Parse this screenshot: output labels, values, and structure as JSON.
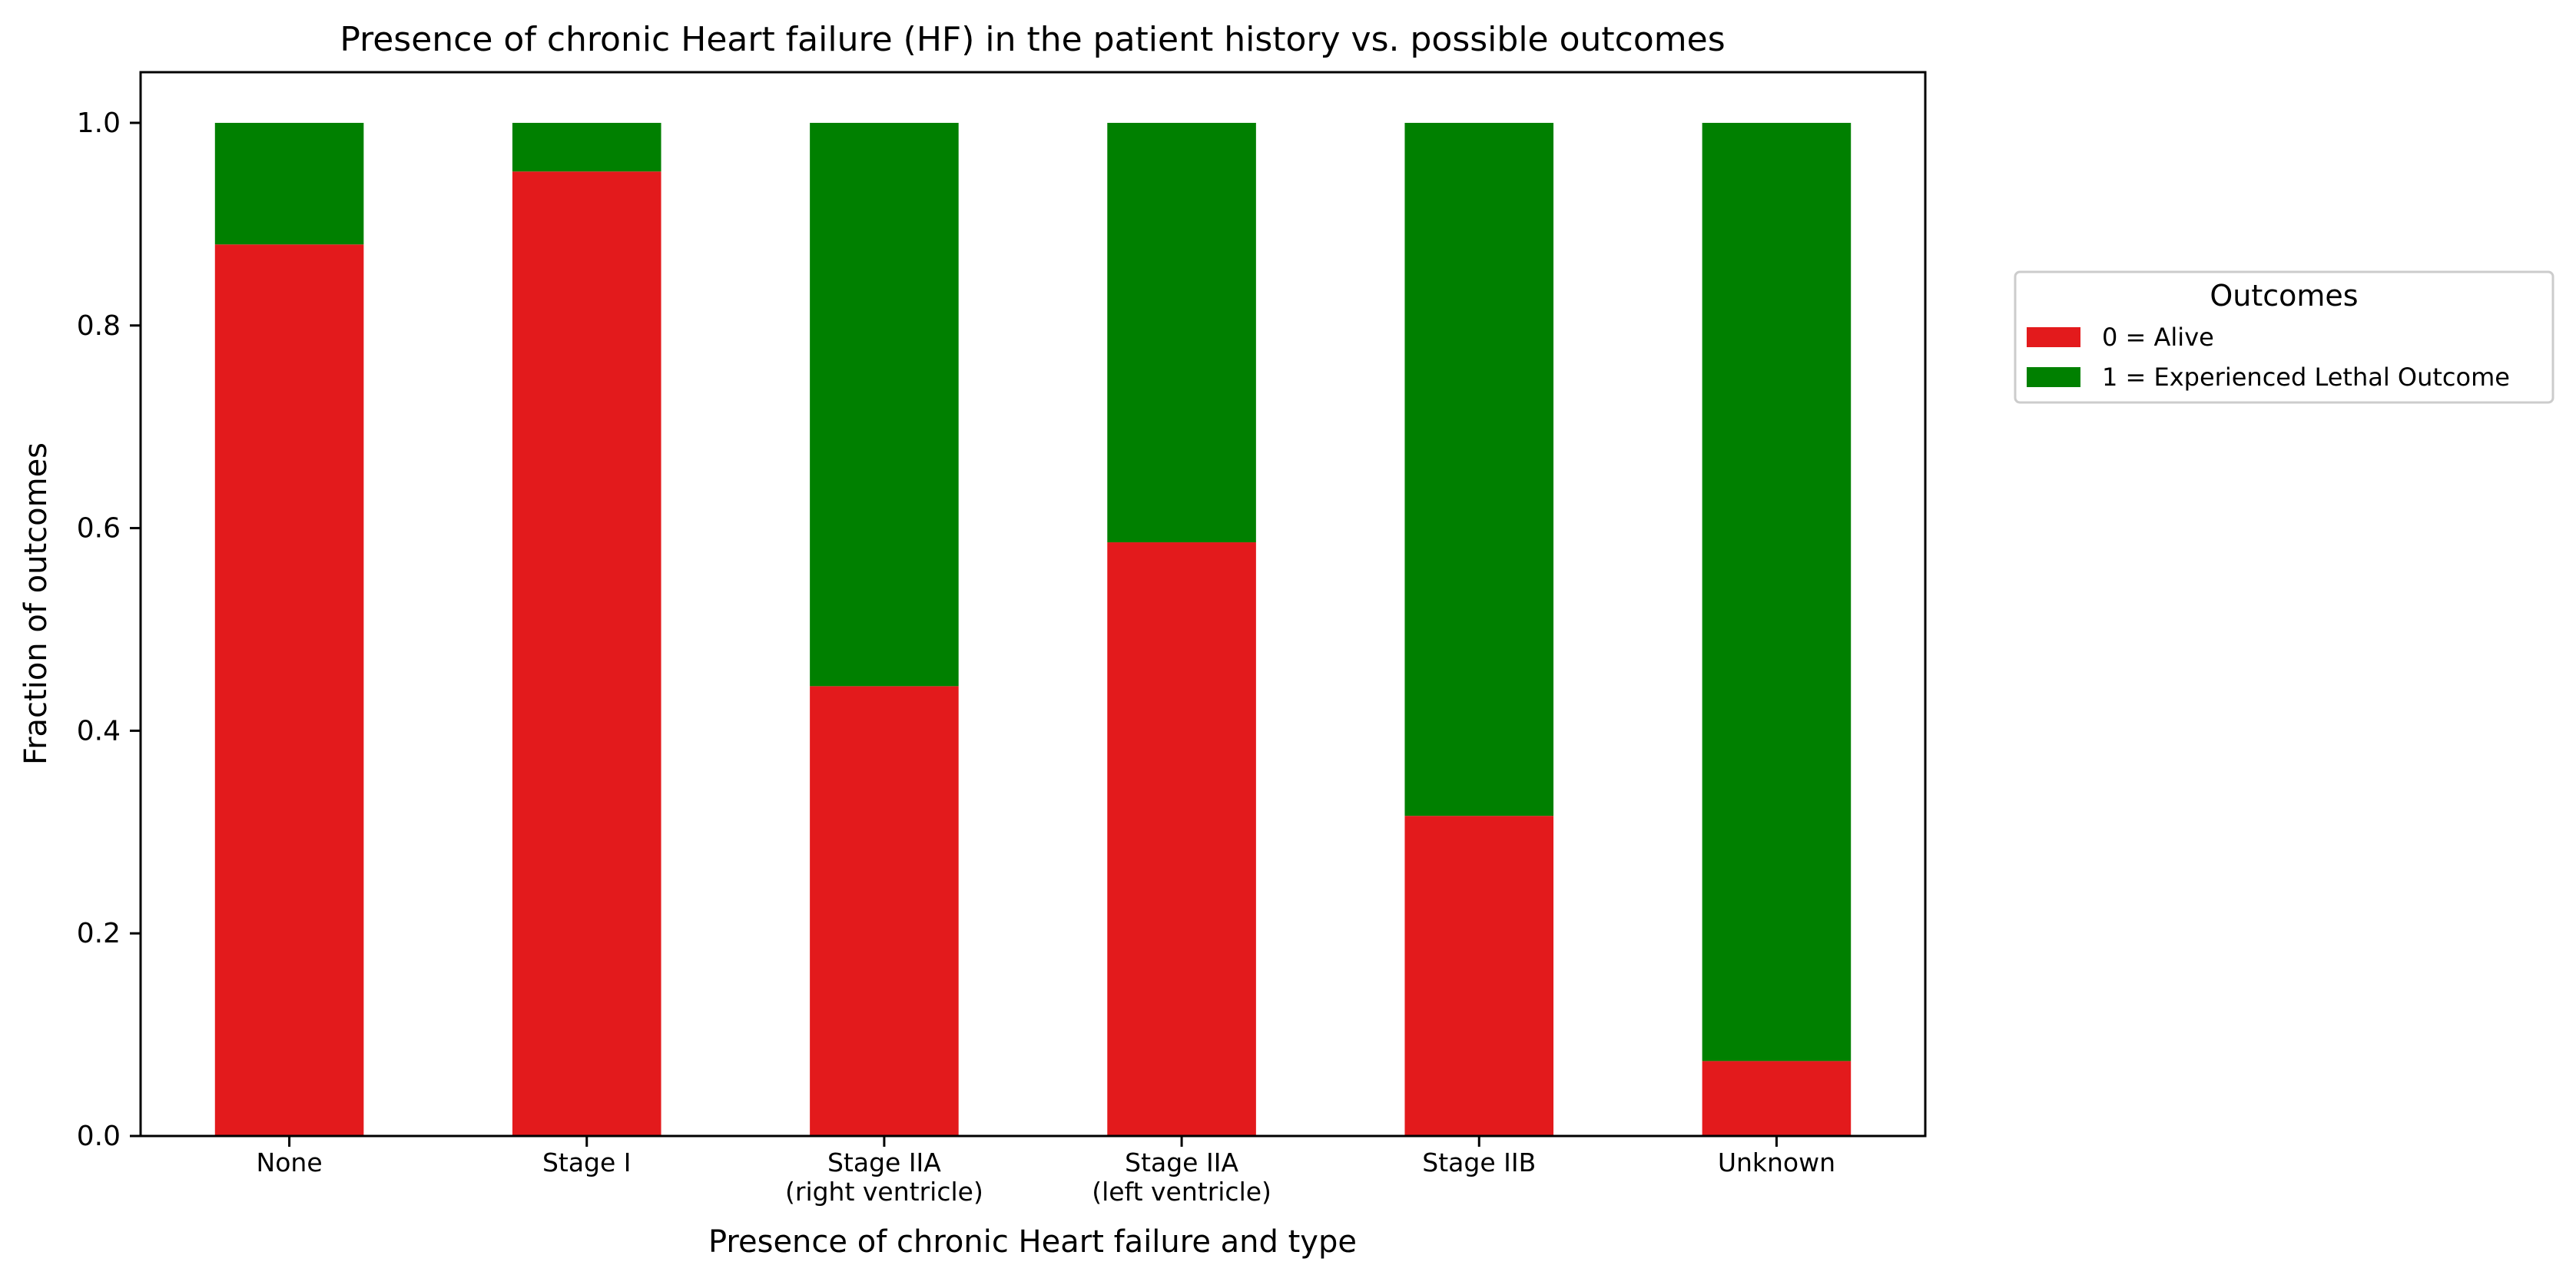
{
  "chart_data": {
    "type": "bar",
    "stacked": true,
    "title": "Presence of chronic Heart failure (HF) in the patient history vs. possible outcomes",
    "xlabel": "Presence of chronic Heart failure and type",
    "ylabel": "Fraction of outcomes",
    "ylim": [
      0,
      1.05
    ],
    "yticks": [
      "0.0",
      "0.2",
      "0.4",
      "0.6",
      "0.8",
      "1.0"
    ],
    "categories": [
      [
        "None"
      ],
      [
        "Stage I"
      ],
      [
        "Stage IIA",
        "(right ventricle)"
      ],
      [
        "Stage IIA",
        "(left ventricle)"
      ],
      [
        "Stage IIB"
      ],
      [
        "Unknown"
      ]
    ],
    "series": [
      {
        "name": "0 = Alive",
        "color": "#e31a1c",
        "values": [
          0.88,
          0.952,
          0.444,
          0.586,
          0.316,
          0.074
        ]
      },
      {
        "name": "1 = Experienced Lethal Outcome",
        "color": "#008000",
        "values": [
          0.12,
          0.048,
          0.556,
          0.414,
          0.684,
          0.926
        ]
      }
    ],
    "legend": {
      "title": "Outcomes",
      "placement": "right"
    },
    "grid": false
  }
}
